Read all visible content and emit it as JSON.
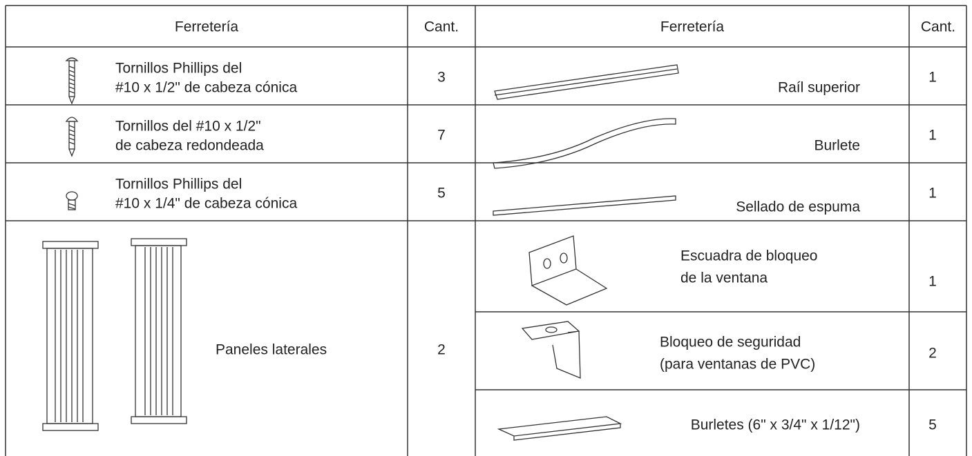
{
  "table": {
    "header": [
      "Ferretería",
      "Cant.",
      "Ferretería",
      "Cant."
    ],
    "left_rows": [
      {
        "label": [
          "Tornillos Phillips del",
          "#10 x 1/2\" de cabeza cónica"
        ],
        "qty": 3
      },
      {
        "label": [
          "Tornillos del #10 x 1/2\"",
          "de cabeza redondeada"
        ],
        "qty": 7
      },
      {
        "label": [
          "Tornillos Phillips del",
          "#10 x 1/4\" de cabeza cónica"
        ],
        "qty": 5
      },
      {
        "label": [
          "Paneles laterales"
        ],
        "qty": 2
      }
    ],
    "right_rows": [
      {
        "label": [
          "Raíl superior"
        ],
        "qty": 1
      },
      {
        "label": [
          "Burlete"
        ],
        "qty": 1
      },
      {
        "label": [
          "Sellado de espuma"
        ],
        "qty": 1
      },
      {
        "label": [
          "Escuadra de bloqueo",
          "de la ventana"
        ],
        "qty": 1
      },
      {
        "label": [
          "Bloqueo de seguridad",
          "(para ventanas de PVC)"
        ],
        "qty": 2
      },
      {
        "label": [
          "Burletes (6\" x 3/4\" x 1/12\")"
        ],
        "qty": 5
      }
    ]
  }
}
